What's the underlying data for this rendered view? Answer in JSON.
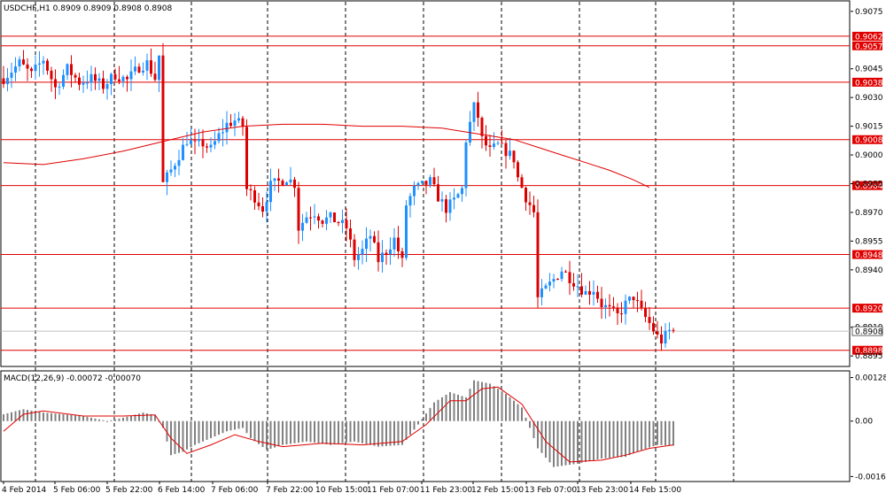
{
  "header": {
    "symbol_line": "USDCHF,H1  0.8909 0.8909 0.8908 0.8908"
  },
  "colors": {
    "bull": "#1e90ff",
    "bear": "#dd0000",
    "level_line": "#e00000",
    "level_label_bg": "#e00000",
    "current_label_bg": "#ffffff",
    "ma_line": "#e00000",
    "macd_hist": "#808080",
    "macd_signal": "#e00000",
    "grid_dash": "#000000",
    "axis": "#000000"
  },
  "chart_data": [
    {
      "type": "candlestick",
      "title": "USDCHF,H1  0.8909 0.8909 0.8908 0.8908",
      "ylim": [
        0.889,
        0.908
      ],
      "y_ticks": [
        "0.9075",
        "0.9045",
        "0.9030",
        "0.9015",
        "0.9000",
        "0.8985",
        "0.8970",
        "0.8955",
        "0.8940",
        "0.8910",
        "0.8895"
      ],
      "x_ticks": [
        "4 Feb 2014",
        "5 Feb 06:00",
        "5 Feb 22:00",
        "6 Feb 14:00",
        "7 Feb 06:00",
        "7 Feb 22:00",
        "10 Feb 15:00",
        "11 Feb 07:00",
        "11 Feb 23:00",
        "12 Feb 15:00",
        "13 Feb 07:00",
        "13 Feb 23:00",
        "14 Feb 15:00"
      ],
      "horizontal_levels": [
        "0.9062",
        "0.9057",
        "0.9038",
        "0.9008",
        "0.8984",
        "0.8948",
        "0.8920",
        "0.8898"
      ],
      "current_price": "0.8908",
      "close_path": [
        [
          0,
          0.904
        ],
        [
          4,
          0.9048
        ],
        [
          7,
          0.9042
        ],
        [
          10,
          0.905
        ],
        [
          13,
          0.9035
        ],
        [
          16,
          0.9045
        ],
        [
          19,
          0.9038
        ],
        [
          22,
          0.904
        ],
        [
          25,
          0.9036
        ],
        [
          28,
          0.9042
        ],
        [
          31,
          0.9039
        ],
        [
          34,
          0.9046
        ],
        [
          36,
          0.9048
        ],
        [
          38,
          0.904
        ],
        [
          39,
          0.9052
        ],
        [
          40,
          0.8985
        ],
        [
          42,
          0.8992
        ],
        [
          44,
          0.9
        ],
        [
          46,
          0.9008
        ],
        [
          48,
          0.9005
        ],
        [
          50,
          0.9006
        ],
        [
          52,
          0.9003
        ],
        [
          54,
          0.901
        ],
        [
          56,
          0.9016
        ],
        [
          58,
          0.9018
        ],
        [
          60,
          0.9015
        ],
        [
          61,
          0.8982
        ],
        [
          63,
          0.8978
        ],
        [
          65,
          0.8972
        ],
        [
          67,
          0.8984
        ],
        [
          69,
          0.8986
        ],
        [
          71,
          0.8988
        ],
        [
          73,
          0.8985
        ],
        [
          74,
          0.8962
        ],
        [
          76,
          0.8968
        ],
        [
          78,
          0.897
        ],
        [
          80,
          0.8966
        ],
        [
          82,
          0.8967
        ],
        [
          84,
          0.8965
        ],
        [
          86,
          0.8962
        ],
        [
          88,
          0.8946
        ],
        [
          90,
          0.895
        ],
        [
          92,
          0.8958
        ],
        [
          94,
          0.8945
        ],
        [
          96,
          0.895
        ],
        [
          98,
          0.8956
        ],
        [
          100,
          0.8944
        ],
        [
          101,
          0.8974
        ],
        [
          103,
          0.8982
        ],
        [
          105,
          0.8984
        ],
        [
          107,
          0.8986
        ],
        [
          109,
          0.8978
        ],
        [
          111,
          0.8972
        ],
        [
          113,
          0.8976
        ],
        [
          115,
          0.8982
        ],
        [
          116,
          0.9008
        ],
        [
          118,
          0.9025
        ],
        [
          119,
          0.902
        ],
        [
          120,
          0.9008
        ],
        [
          122,
          0.9002
        ],
        [
          124,
          0.9005
        ],
        [
          126,
          0.9002
        ],
        [
          128,
          0.8998
        ],
        [
          129,
          0.8988
        ],
        [
          131,
          0.8978
        ],
        [
          133,
          0.897
        ],
        [
          134,
          0.8925
        ],
        [
          136,
          0.893
        ],
        [
          138,
          0.8935
        ],
        [
          140,
          0.894
        ],
        [
          142,
          0.8936
        ],
        [
          144,
          0.8932
        ],
        [
          146,
          0.8928
        ],
        [
          148,
          0.893
        ],
        [
          150,
          0.8922
        ],
        [
          152,
          0.8919
        ],
        [
          154,
          0.8916
        ],
        [
          156,
          0.8922
        ],
        [
          158,
          0.8926
        ],
        [
          160,
          0.8918
        ],
        [
          162,
          0.8912
        ],
        [
          164,
          0.8905
        ],
        [
          165,
          0.8903
        ],
        [
          167,
          0.8908
        ],
        [
          168,
          0.8908
        ]
      ],
      "moving_average": [
        [
          0,
          0.8996
        ],
        [
          10,
          0.8995
        ],
        [
          20,
          0.8998
        ],
        [
          30,
          0.9002
        ],
        [
          40,
          0.9007
        ],
        [
          50,
          0.9012
        ],
        [
          60,
          0.9015
        ],
        [
          70,
          0.9016
        ],
        [
          80,
          0.9016
        ],
        [
          90,
          0.9015
        ],
        [
          100,
          0.9015
        ],
        [
          110,
          0.9014
        ],
        [
          116,
          0.9012
        ],
        [
          122,
          0.901
        ],
        [
          128,
          0.9008
        ],
        [
          134,
          0.9004
        ],
        [
          140,
          0.9
        ],
        [
          146,
          0.8996
        ],
        [
          152,
          0.8992
        ],
        [
          158,
          0.8987
        ],
        [
          162,
          0.8983
        ]
      ]
    },
    {
      "type": "histogram",
      "title": "MACD(12,26,9) -0.00072 -0.00070",
      "ylim": [
        -0.00175,
        0.00145
      ],
      "y_ticks": [
        "0.00128",
        "0.00",
        "-0.00163"
      ],
      "macd_path": [
        [
          0,
          0.0002
        ],
        [
          5,
          0.00035
        ],
        [
          10,
          0.00025
        ],
        [
          15,
          0.0002
        ],
        [
          20,
          0.00015
        ],
        [
          26,
          0.0
        ],
        [
          30,
          0.0001
        ],
        [
          35,
          0.00025
        ],
        [
          38,
          0.00018
        ],
        [
          40,
          -0.0002
        ],
        [
          42,
          -0.001
        ],
        [
          45,
          -0.0009
        ],
        [
          48,
          -0.0007
        ],
        [
          52,
          -0.0005
        ],
        [
          56,
          -0.0003
        ],
        [
          60,
          -0.0002
        ],
        [
          62,
          -0.0005
        ],
        [
          66,
          -0.00085
        ],
        [
          70,
          -0.0007
        ],
        [
          76,
          -0.0006
        ],
        [
          82,
          -0.0007
        ],
        [
          88,
          -0.0006
        ],
        [
          94,
          -0.00075
        ],
        [
          100,
          -0.0007
        ],
        [
          104,
          -0.0001
        ],
        [
          108,
          0.00055
        ],
        [
          112,
          0.00085
        ],
        [
          116,
          0.0007
        ],
        [
          118,
          0.0012
        ],
        [
          122,
          0.0011
        ],
        [
          126,
          0.0008
        ],
        [
          130,
          0.0004
        ],
        [
          134,
          -0.0008
        ],
        [
          138,
          -0.00135
        ],
        [
          144,
          -0.00125
        ],
        [
          150,
          -0.0011
        ],
        [
          156,
          -0.00105
        ],
        [
          160,
          -0.00085
        ],
        [
          164,
          -0.0007
        ],
        [
          168,
          -0.00072
        ]
      ],
      "signal_path": [
        [
          0,
          -0.0003
        ],
        [
          5,
          0.0002
        ],
        [
          10,
          0.0003
        ],
        [
          20,
          0.00015
        ],
        [
          30,
          0.00015
        ],
        [
          38,
          0.00018
        ],
        [
          42,
          -0.0005
        ],
        [
          46,
          -0.00095
        ],
        [
          52,
          -0.0007
        ],
        [
          58,
          -0.0004
        ],
        [
          64,
          -0.0006
        ],
        [
          70,
          -0.00075
        ],
        [
          80,
          -0.00065
        ],
        [
          90,
          -0.0007
        ],
        [
          100,
          -0.0006
        ],
        [
          106,
          -0.0001
        ],
        [
          112,
          0.0006
        ],
        [
          116,
          0.0006
        ],
        [
          120,
          0.00095
        ],
        [
          124,
          0.001
        ],
        [
          130,
          0.0005
        ],
        [
          136,
          -0.0006
        ],
        [
          142,
          -0.0012
        ],
        [
          150,
          -0.00115
        ],
        [
          156,
          -0.001
        ],
        [
          162,
          -0.0008
        ],
        [
          168,
          -0.0007
        ]
      ]
    }
  ]
}
